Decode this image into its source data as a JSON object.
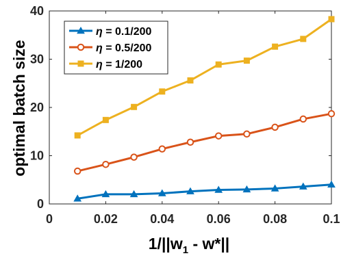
{
  "chart_data": {
    "type": "line",
    "xlabel": "1/||w₁ - w*||",
    "xlabel_parts": {
      "prefix": "1/||w",
      "sub": "1",
      "suffix": " - w*||"
    },
    "ylabel": "optimal batch size",
    "xlim": [
      0,
      0.1
    ],
    "ylim": [
      0,
      40
    ],
    "xticks": [
      0,
      0.02,
      0.04,
      0.06,
      0.08,
      0.1
    ],
    "xtick_labels": [
      "0",
      "0.02",
      "0.04",
      "0.06",
      "0.08",
      "0.1"
    ],
    "yticks": [
      0,
      10,
      20,
      30,
      40
    ],
    "ytick_labels": [
      "0",
      "10",
      "20",
      "30",
      "40"
    ],
    "grid": false,
    "legend_position": "top-left",
    "x": [
      0.01,
      0.02,
      0.03,
      0.04,
      0.05,
      0.06,
      0.07,
      0.08,
      0.09,
      0.1
    ],
    "series": [
      {
        "name": "η = 0.1/200",
        "legend_symbol": "η",
        "legend_value": " = 0.1/200",
        "color": "#0072BD",
        "marker": "triangle",
        "values": [
          1.1,
          2.0,
          2.0,
          2.2,
          2.6,
          2.9,
          3.0,
          3.2,
          3.6,
          4.0
        ]
      },
      {
        "name": "η = 0.5/200",
        "legend_symbol": "η",
        "legend_value": " = 0.5/200",
        "color": "#D95319",
        "marker": "circle",
        "values": [
          6.8,
          8.2,
          9.7,
          11.4,
          12.8,
          14.1,
          14.5,
          15.9,
          17.6,
          18.7
        ]
      },
      {
        "name": "η = 1/200",
        "legend_symbol": "η",
        "legend_value": " = 1/200",
        "color": "#EDB120",
        "marker": "square",
        "values": [
          14.2,
          17.4,
          20.1,
          23.3,
          25.6,
          28.9,
          29.7,
          32.6,
          34.2,
          38.3
        ]
      }
    ]
  }
}
